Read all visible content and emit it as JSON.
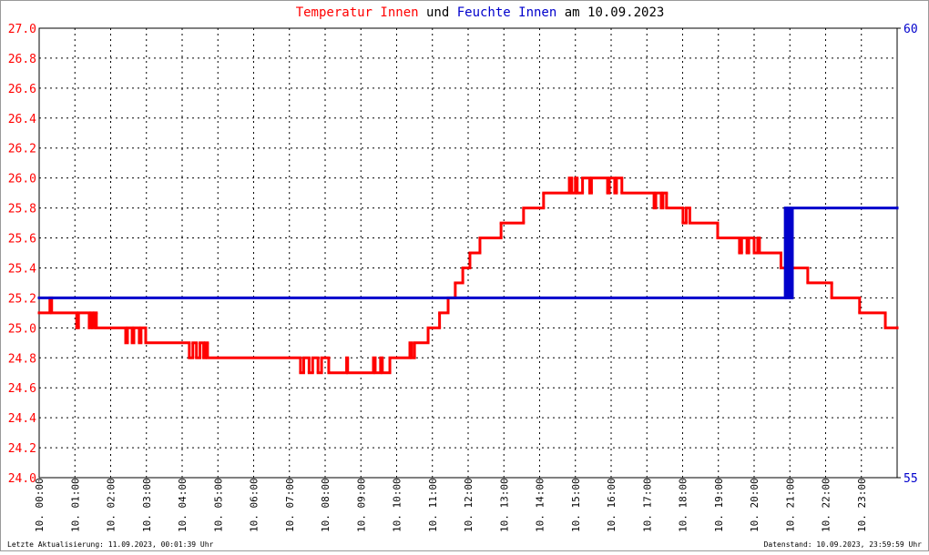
{
  "chart_data": {
    "type": "step-line",
    "title_connector": "und",
    "title_suffix": "am 10.09.2023",
    "footer_left": "Letzte Aktualisierung: 11.09.2023, 00:01:39 Uhr",
    "footer_right": "Datenstand: 10.09.2023, 23:59:59 Uhr",
    "grid": true,
    "xlim": [
      0,
      24
    ],
    "xticks": [
      {
        "value": 0,
        "label": "10. 00:00"
      },
      {
        "value": 1,
        "label": "10. 01:00"
      },
      {
        "value": 2,
        "label": "10. 02:00"
      },
      {
        "value": 3,
        "label": "10. 03:00"
      },
      {
        "value": 4,
        "label": "10. 04:00"
      },
      {
        "value": 5,
        "label": "10. 05:00"
      },
      {
        "value": 6,
        "label": "10. 06:00"
      },
      {
        "value": 7,
        "label": "10. 07:00"
      },
      {
        "value": 8,
        "label": "10. 08:00"
      },
      {
        "value": 9,
        "label": "10. 09:00"
      },
      {
        "value": 10,
        "label": "10. 10:00"
      },
      {
        "value": 11,
        "label": "10. 11:00"
      },
      {
        "value": 12,
        "label": "10. 12:00"
      },
      {
        "value": 13,
        "label": "10. 13:00"
      },
      {
        "value": 14,
        "label": "10. 14:00"
      },
      {
        "value": 15,
        "label": "10. 15:00"
      },
      {
        "value": 16,
        "label": "10. 16:00"
      },
      {
        "value": 17,
        "label": "10. 17:00"
      },
      {
        "value": 18,
        "label": "10. 18:00"
      },
      {
        "value": 19,
        "label": "10. 19:00"
      },
      {
        "value": 20,
        "label": "10. 20:00"
      },
      {
        "value": 21,
        "label": "10. 21:00"
      },
      {
        "value": 22,
        "label": "10. 22:00"
      },
      {
        "value": 23,
        "label": "10. 23:00"
      }
    ],
    "ylim": [
      24,
      27
    ],
    "yticks": [
      {
        "value": 24,
        "label": "24.0"
      },
      24.2,
      24.4,
      24.6,
      24.8,
      {
        "value": 25,
        "label": "25.0"
      },
      25.2,
      25.4,
      25.6,
      25.8,
      {
        "value": 26,
        "label": "26.0"
      },
      26.2,
      26.4,
      26.6,
      26.8,
      {
        "value": 27,
        "label": "27.0"
      }
    ],
    "y2lim": [
      55,
      60
    ],
    "y2ticks": [
      55,
      60
    ],
    "series": [
      {
        "name": "Temperatur Innen",
        "color": "#ff0000",
        "x": [
          0,
          0.3,
          0.35,
          1.05,
          1.1,
          1.4,
          1.45,
          1.5,
          1.55,
          1.6,
          2.42,
          2.47,
          2.6,
          2.65,
          2.8,
          2.85,
          2.98,
          4.2,
          4.3,
          4.4,
          4.5,
          4.6,
          4.65,
          4.71,
          7.31,
          7.4,
          7.55,
          7.65,
          7.8,
          7.9,
          8.1,
          8.6,
          8.63,
          9.35,
          9.4,
          9.55,
          9.6,
          9.81,
          10.37,
          10.42,
          10.5,
          10.88,
          11.2,
          11.44,
          11.64,
          11.85,
          12.05,
          12.33,
          12.92,
          13.55,
          14.11,
          14.83,
          14.9,
          15.0,
          15.05,
          15.2,
          15.4,
          15.45,
          15.9,
          15.95,
          16.1,
          16.15,
          16.3,
          17.2,
          17.25,
          17.4,
          17.45,
          17.55,
          18.01,
          18.1,
          18.2,
          18.98,
          19.59,
          19.65,
          19.8,
          19.85,
          20.0,
          20.1,
          20.15,
          20.75,
          21.5,
          22.17,
          22.95,
          23.67,
          24.0
        ],
        "values": [
          25.1,
          25.2,
          25.1,
          25.0,
          25.1,
          25.0,
          25.1,
          25.0,
          25.1,
          25.0,
          24.9,
          25.0,
          24.9,
          25.0,
          24.9,
          25.0,
          24.9,
          24.8,
          24.9,
          24.8,
          24.9,
          24.8,
          24.9,
          24.8,
          24.7,
          24.8,
          24.7,
          24.8,
          24.7,
          24.8,
          24.7,
          24.8,
          24.7,
          24.8,
          24.7,
          24.8,
          24.7,
          24.8,
          24.9,
          24.8,
          24.9,
          25.0,
          25.1,
          25.2,
          25.3,
          25.4,
          25.5,
          25.6,
          25.7,
          25.8,
          25.9,
          26.0,
          25.9,
          26.0,
          25.9,
          26.0,
          25.9,
          26.0,
          25.9,
          26.0,
          25.9,
          26.0,
          25.9,
          25.8,
          25.9,
          25.8,
          25.9,
          25.8,
          25.7,
          25.8,
          25.7,
          25.6,
          25.5,
          25.6,
          25.5,
          25.6,
          25.5,
          25.6,
          25.5,
          25.4,
          25.3,
          25.2,
          25.1,
          25.0,
          25.0
        ]
      },
      {
        "name": "Feuchte Innen",
        "color": "#0000cc",
        "axis": "y2",
        "x": [
          0,
          20.87,
          20.9,
          20.95,
          21.0,
          21.07,
          24
        ],
        "values": [
          57,
          58,
          57,
          58,
          57,
          58,
          58
        ]
      }
    ]
  }
}
